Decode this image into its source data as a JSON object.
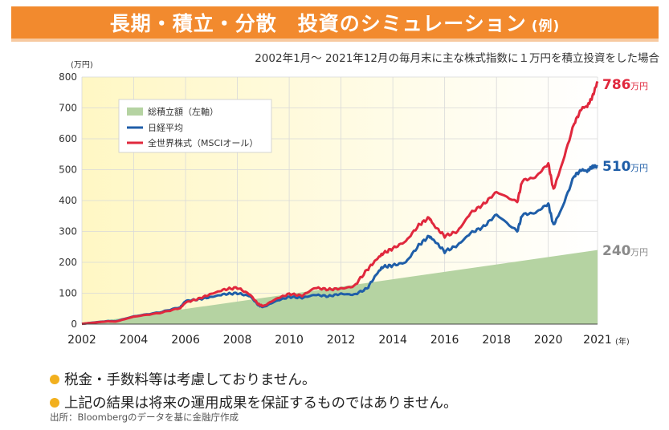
{
  "header": {
    "title": "長期・積立・分散　投資のシミュレーション",
    "title_suffix": "(例)",
    "subtitle": "2002年1月～ 2021年12月の毎月末に主な株式指数に１万円を積立投資をした場合"
  },
  "notes": [
    "税金・手数料等は考慮しておりません。",
    "上記の結果は将来の運用成果を保証するものではありません。"
  ],
  "source": "出所：Bloombergのデータを基に金融庁作成",
  "colors": {
    "banner": "#f28a2e",
    "accumulated": "#b5d3a2",
    "nikkei": "#1f5ea8",
    "world": "#e0283d",
    "endlabel_total": "#8a8a8a",
    "bullet": "#f2b01e"
  },
  "chart_data": {
    "type": "line",
    "ylabel": "(万円)",
    "xlabel": "(年)",
    "ylim": [
      0,
      800
    ],
    "xlim": [
      2002,
      2021
    ],
    "yticks": [
      0,
      100,
      200,
      300,
      400,
      500,
      600,
      700,
      800
    ],
    "xticks": [
      "2002",
      "2004",
      "2006",
      "2008",
      "2010",
      "2012",
      "2014",
      "2016",
      "2018",
      "2020",
      "2021"
    ],
    "legend_position": "top-left",
    "series": [
      {
        "name": "総積立額（左軸）",
        "style": "area",
        "x": [
          2002,
          2021.9
        ],
        "values": [
          1,
          240
        ]
      },
      {
        "name": "日経平均",
        "style": "line",
        "x": [
          2002,
          2003,
          2003.3,
          2004,
          2005,
          2005.8,
          2006,
          2006.5,
          2007,
          2007.5,
          2008,
          2008.5,
          2008.8,
          2009,
          2009.5,
          2010,
          2010.5,
          2011,
          2011.5,
          2012,
          2012.5,
          2013,
          2013.4,
          2013.6,
          2014,
          2014.5,
          2015,
          2015.4,
          2015.6,
          2016,
          2016.5,
          2017,
          2017.5,
          2018,
          2018.8,
          2019,
          2019.5,
          2020,
          2020.2,
          2020.5,
          2021,
          2021.3,
          2021.5,
          2021.7,
          2021.9
        ],
        "values": [
          1,
          10,
          9,
          25,
          38,
          55,
          75,
          80,
          88,
          97,
          100,
          90,
          62,
          55,
          75,
          88,
          85,
          95,
          90,
          98,
          95,
          115,
          165,
          185,
          190,
          200,
          255,
          285,
          270,
          235,
          255,
          295,
          315,
          355,
          300,
          355,
          360,
          390,
          320,
          370,
          480,
          500,
          495,
          510,
          510
        ]
      },
      {
        "name": "全世界株式（MSCIオール）",
        "style": "line",
        "x": [
          2002,
          2003,
          2003.3,
          2004,
          2005,
          2005.8,
          2006,
          2006.5,
          2007,
          2007.5,
          2008,
          2008.5,
          2008.8,
          2009,
          2009.5,
          2010,
          2010.5,
          2011,
          2011.5,
          2012,
          2012.5,
          2013,
          2013.4,
          2013.6,
          2014,
          2014.5,
          2015,
          2015.4,
          2015.6,
          2016,
          2016.5,
          2017,
          2017.5,
          2018,
          2018.8,
          2019,
          2019.5,
          2020,
          2020.2,
          2020.5,
          2021,
          2021.3,
          2021.5,
          2021.7,
          2021.9
        ],
        "values": [
          1,
          9,
          8,
          24,
          36,
          52,
          70,
          82,
          98,
          112,
          118,
          95,
          65,
          58,
          82,
          98,
          92,
          118,
          112,
          115,
          122,
          175,
          212,
          228,
          245,
          268,
          320,
          345,
          318,
          285,
          300,
          360,
          388,
          428,
          395,
          465,
          475,
          520,
          435,
          510,
          650,
          700,
          705,
          735,
          786
        ]
      }
    ],
    "end_labels": [
      {
        "value": 786,
        "text": "786",
        "unit": "万円",
        "series": "全世界株式（MSCIオール）"
      },
      {
        "value": 510,
        "text": "510",
        "unit": "万円",
        "series": "日経平均"
      },
      {
        "value": 240,
        "text": "240",
        "unit": "万円",
        "series": "総積立額（左軸）"
      }
    ]
  }
}
